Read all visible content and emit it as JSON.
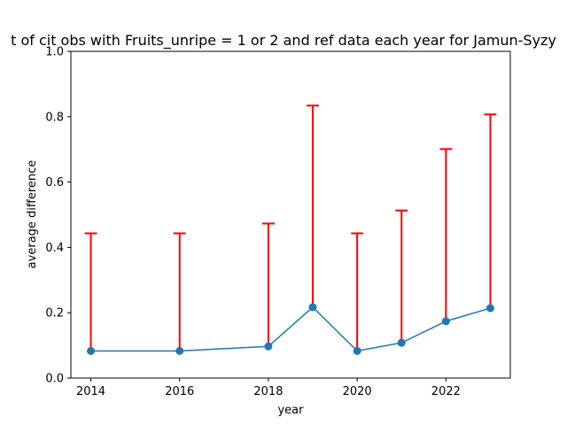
{
  "chart_data": {
    "type": "line",
    "title": "t of cit obs with Fruits_unripe = 1 or 2 and ref data each year for Jamun-Syzy",
    "xlabel": "year",
    "ylabel": "average difference",
    "xlim": [
      2013.55,
      2023.45
    ],
    "ylim": [
      0,
      1.0
    ],
    "x_ticks": [
      "2014",
      "2016",
      "2018",
      "2020",
      "2022"
    ],
    "y_ticks": [
      "0.0",
      "0.2",
      "0.4",
      "0.6",
      "0.8",
      "1.0"
    ],
    "grid": false,
    "series": [
      {
        "x": [
          2014,
          2016,
          2018,
          2019,
          2020,
          2021,
          2022,
          2023
        ],
        "y": [
          0.083,
          0.083,
          0.097,
          0.217,
          0.083,
          0.108,
          0.174,
          0.214
        ],
        "err_lower": [
          0,
          0,
          0,
          0,
          0,
          0,
          0,
          0
        ],
        "err_upper": [
          0.36,
          0.36,
          0.376,
          0.617,
          0.36,
          0.405,
          0.527,
          0.593
        ]
      }
    ],
    "colors": {
      "line": "#1f77b4",
      "marker": "#1f77b4",
      "errorbar": "#ff0000"
    }
  }
}
